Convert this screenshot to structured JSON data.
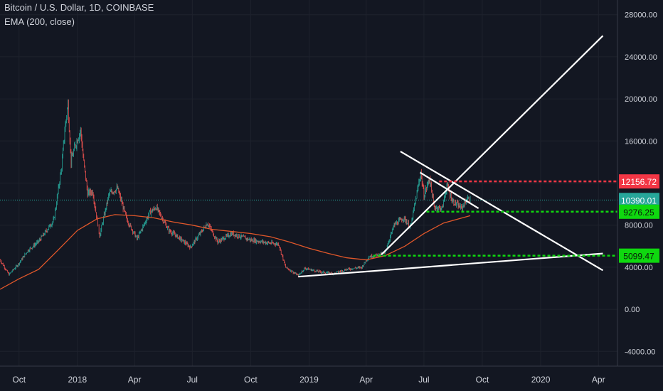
{
  "header": {
    "symbol_line": "Bitcoin / U.S. Dollar, 1D, COINBASE",
    "indicator_line": "EMA (200, close)"
  },
  "colors": {
    "background": "#131722",
    "grid": "#1e222d",
    "axis_text": "#d1d4dc",
    "up_candle": "#26a69a",
    "down_candle": "#ef5350",
    "ema": "#e0572a",
    "trendline": "#ffffff",
    "resistance": "#f23645",
    "support": "#0fd80f",
    "last_price": "#26a69a"
  },
  "chart_data": {
    "type": "line",
    "title": "Bitcoin / U.S. Dollar, 1D, COINBASE",
    "xlabel": "",
    "ylabel": "",
    "grid": true,
    "y_axis_side": "right",
    "ylim": [
      -5400,
      29400
    ],
    "xlim": [
      "2017-09-01",
      "2020-05-01"
    ],
    "y_ticks": [
      "28000.00",
      "24000.00",
      "20000.00",
      "16000.00",
      "12000.00",
      "8000.00",
      "4000.00",
      "0.00",
      "-4000.00"
    ],
    "x_ticks": [
      {
        "label": "Oct",
        "date": "2017-10-01"
      },
      {
        "label": "2018",
        "date": "2018-01-01"
      },
      {
        "label": "Apr",
        "date": "2018-04-01"
      },
      {
        "label": "Jul",
        "date": "2018-07-01"
      },
      {
        "label": "Oct",
        "date": "2018-10-01"
      },
      {
        "label": "2019",
        "date": "2019-01-01"
      },
      {
        "label": "Apr",
        "date": "2019-04-01"
      },
      {
        "label": "Jul",
        "date": "2019-07-01"
      },
      {
        "label": "Oct",
        "date": "2019-10-01"
      },
      {
        "label": "2020",
        "date": "2020-01-01"
      },
      {
        "label": "Apr",
        "date": "2020-04-01"
      }
    ],
    "series": [
      {
        "name": "Bitcoin / U.S. Dollar",
        "points": [
          [
            "2017-09-01",
            4700
          ],
          [
            "2017-09-15",
            3300
          ],
          [
            "2017-09-30",
            4300
          ],
          [
            "2017-10-15",
            5600
          ],
          [
            "2017-10-31",
            6400
          ],
          [
            "2017-11-10",
            7200
          ],
          [
            "2017-11-25",
            8500
          ],
          [
            "2017-12-07",
            13500
          ],
          [
            "2017-12-12",
            17000
          ],
          [
            "2017-12-17",
            19500
          ],
          [
            "2017-12-22",
            14000
          ],
          [
            "2017-12-28",
            15500
          ],
          [
            "2018-01-06",
            17000
          ],
          [
            "2018-01-10",
            14500
          ],
          [
            "2018-01-17",
            11000
          ],
          [
            "2018-01-25",
            11200
          ],
          [
            "2018-02-05",
            7000
          ],
          [
            "2018-02-20",
            11000
          ],
          [
            "2018-03-05",
            11500
          ],
          [
            "2018-03-20",
            8500
          ],
          [
            "2018-04-05",
            6700
          ],
          [
            "2018-04-25",
            9200
          ],
          [
            "2018-05-05",
            9700
          ],
          [
            "2018-05-25",
            7500
          ],
          [
            "2018-06-10",
            6800
          ],
          [
            "2018-06-28",
            5900
          ],
          [
            "2018-07-25",
            8200
          ],
          [
            "2018-08-10",
            6400
          ],
          [
            "2018-09-01",
            7200
          ],
          [
            "2018-09-30",
            6600
          ],
          [
            "2018-10-30",
            6300
          ],
          [
            "2018-11-14",
            6200
          ],
          [
            "2018-11-25",
            4000
          ],
          [
            "2018-12-15",
            3200
          ],
          [
            "2018-12-25",
            3900
          ],
          [
            "2019-01-15",
            3600
          ],
          [
            "2019-02-08",
            3400
          ],
          [
            "2019-03-01",
            3800
          ],
          [
            "2019-03-25",
            4000
          ],
          [
            "2019-04-05",
            5000
          ],
          [
            "2019-04-30",
            5300
          ],
          [
            "2019-05-15",
            8000
          ],
          [
            "2019-05-30",
            8700
          ],
          [
            "2019-06-10",
            7800
          ],
          [
            "2019-06-26",
            13000
          ],
          [
            "2019-07-01",
            10800
          ],
          [
            "2019-07-10",
            12500
          ],
          [
            "2019-07-17",
            9700
          ],
          [
            "2019-07-30",
            9600
          ],
          [
            "2019-08-06",
            11800
          ],
          [
            "2019-08-15",
            10300
          ],
          [
            "2019-08-29",
            9600
          ],
          [
            "2019-09-07",
            10500
          ],
          [
            "2019-09-12",
            10390
          ]
        ]
      },
      {
        "name": "EMA (200, close)",
        "points": [
          [
            "2017-09-01",
            1900
          ],
          [
            "2017-10-01",
            2900
          ],
          [
            "2017-11-01",
            3800
          ],
          [
            "2017-12-01",
            5600
          ],
          [
            "2018-01-01",
            7500
          ],
          [
            "2018-02-01",
            8600
          ],
          [
            "2018-03-01",
            9000
          ],
          [
            "2018-04-01",
            8900
          ],
          [
            "2018-05-01",
            8700
          ],
          [
            "2018-06-01",
            8300
          ],
          [
            "2018-07-01",
            8000
          ],
          [
            "2018-08-01",
            7600
          ],
          [
            "2018-09-01",
            7400
          ],
          [
            "2018-10-01",
            7200
          ],
          [
            "2018-11-01",
            6900
          ],
          [
            "2018-12-01",
            6400
          ],
          [
            "2019-01-01",
            5800
          ],
          [
            "2019-02-01",
            5300
          ],
          [
            "2019-03-01",
            4900
          ],
          [
            "2019-04-01",
            4700
          ],
          [
            "2019-05-01",
            5100
          ],
          [
            "2019-06-01",
            6000
          ],
          [
            "2019-07-01",
            7200
          ],
          [
            "2019-08-01",
            8200
          ],
          [
            "2019-09-12",
            8900
          ]
        ]
      }
    ],
    "trendlines": [
      {
        "from": [
          "2018-12-15",
          3100
        ],
        "to": [
          "2020-04-08",
          5300
        ]
      },
      {
        "from": [
          "2019-04-25",
          5200
        ],
        "to": [
          "2020-04-08",
          26000
        ]
      },
      {
        "from": [
          "2019-05-25",
          15000
        ],
        "to": [
          "2020-04-08",
          3700
        ]
      },
      {
        "from": [
          "2019-06-25",
          13000
        ],
        "to": [
          "2019-09-25",
          9600
        ]
      }
    ],
    "price_levels": [
      {
        "value": 12156.72,
        "label": "12156.72",
        "style": "resistance",
        "from": "2019-07-25"
      },
      {
        "value": 10390.01,
        "label": "10390.01",
        "style": "last_price",
        "from": "2017-09-01"
      },
      {
        "value": 9276.25,
        "label": "9276.25",
        "style": "support",
        "from": "2019-07-05"
      },
      {
        "value": 5099.47,
        "label": "5099.47",
        "style": "support",
        "from": "2019-04-12"
      }
    ]
  }
}
